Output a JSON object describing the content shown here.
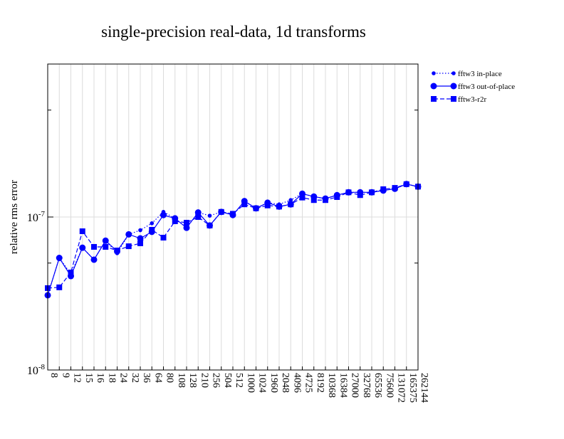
{
  "chart_data": {
    "type": "line",
    "title": "single-precision real-data, 1d transforms",
    "xlabel": "",
    "ylabel": "relative rms error",
    "yscale": "log",
    "ylim": [
      1e-08,
      1e-06
    ],
    "ytick_labels": [
      {
        "base": "10",
        "exp": "-8",
        "value": 1e-08
      },
      {
        "base": "10",
        "exp": "-7",
        "value": 1e-07
      }
    ],
    "grid": true,
    "legend_placement": "outside-top-right",
    "color": "#0000ff",
    "categories": [
      "8",
      "9",
      "12",
      "15",
      "16",
      "18",
      "24",
      "32",
      "36",
      "64",
      "80",
      "108",
      "128",
      "210",
      "256",
      "504",
      "512",
      "1000",
      "1024",
      "1960",
      "2048",
      "4096",
      "4725",
      "8192",
      "10368",
      "16384",
      "27000",
      "32768",
      "65536",
      "75600",
      "131072",
      "165375",
      "262144"
    ],
    "series": [
      {
        "name": "fftw3 in-place",
        "style": "dotted",
        "marker": "small-circle",
        "values": [
          3.08e-08,
          5.4e-08,
          4.25e-08,
          6.3e-08,
          5.26e-08,
          7e-08,
          5.8e-08,
          7.7e-08,
          8.2e-08,
          9.1e-08,
          1.08e-07,
          9.8e-08,
          8.5e-08,
          1.07e-07,
          1.02e-07,
          1.08e-07,
          1.03e-07,
          1.27e-07,
          1.14e-07,
          1.24e-07,
          1.21e-07,
          1.29e-07,
          1.42e-07,
          1.36e-07,
          1.32e-07,
          1.39e-07,
          1.45e-07,
          1.45e-07,
          1.45e-07,
          1.49e-07,
          1.53e-07,
          1.64e-07,
          1.58e-07
        ]
      },
      {
        "name": "fftw3 out-of-place",
        "style": "solid",
        "marker": "circle",
        "values": [
          3.08e-08,
          5.4e-08,
          4.11e-08,
          6.3e-08,
          5.26e-08,
          7e-08,
          5.98e-08,
          7.7e-08,
          7.25e-08,
          8e-08,
          1.03e-07,
          9.8e-08,
          8.5e-08,
          1.07e-07,
          8.8e-08,
          1.08e-07,
          1.03e-07,
          1.27e-07,
          1.14e-07,
          1.24e-07,
          1.17e-07,
          1.21e-07,
          1.42e-07,
          1.36e-07,
          1.32e-07,
          1.39e-07,
          1.45e-07,
          1.45e-07,
          1.45e-07,
          1.49e-07,
          1.53e-07,
          1.64e-07,
          1.58e-07
        ]
      },
      {
        "name": "fftw3-r2r",
        "style": "dashed",
        "marker": "square",
        "values": [
          3.43e-08,
          3.47e-08,
          4.34e-08,
          8.07e-08,
          6.38e-08,
          6.38e-08,
          6.04e-08,
          6.44e-08,
          6.73e-08,
          8.25e-08,
          7.33e-08,
          9.38e-08,
          9.18e-08,
          1e-07,
          8.8e-08,
          1.08e-07,
          1.05e-07,
          1.21e-07,
          1.14e-07,
          1.19e-07,
          1.17e-07,
          1.21e-07,
          1.34e-07,
          1.29e-07,
          1.29e-07,
          1.35e-07,
          1.45e-07,
          1.39e-07,
          1.45e-07,
          1.52e-07,
          1.55e-07,
          1.64e-07,
          1.58e-07
        ]
      }
    ]
  }
}
